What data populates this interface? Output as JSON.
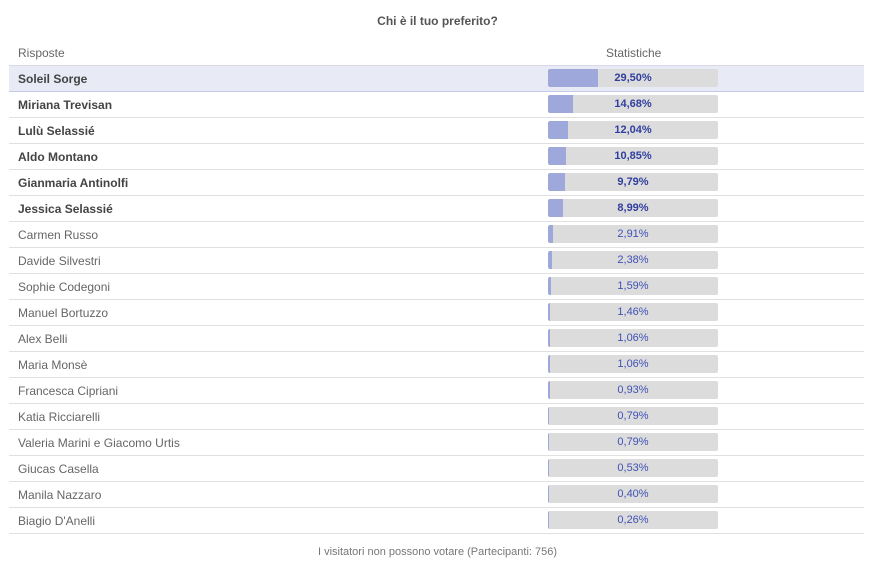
{
  "title": "Chi è il tuo preferito?",
  "header": {
    "answers_label": "Risposte",
    "stats_label": "Statistiche"
  },
  "colors": {
    "bar_fill": "#9fa8da",
    "bar_track": "#dcdcdc",
    "highlight_row": "#e8eaf6",
    "value_text": "#3f51b5"
  },
  "rows": [
    {
      "name": "Soleil Sorge",
      "percent_label": "29,50%",
      "percent": 29.5,
      "bold": true,
      "highlight": true
    },
    {
      "name": "Miriana Trevisan",
      "percent_label": "14,68%",
      "percent": 14.68,
      "bold": true,
      "highlight": false
    },
    {
      "name": "Lulù Selassié",
      "percent_label": "12,04%",
      "percent": 12.04,
      "bold": true,
      "highlight": false
    },
    {
      "name": "Aldo Montano",
      "percent_label": "10,85%",
      "percent": 10.85,
      "bold": true,
      "highlight": false
    },
    {
      "name": "Gianmaria Antinolfi",
      "percent_label": "9,79%",
      "percent": 9.79,
      "bold": true,
      "highlight": false
    },
    {
      "name": "Jessica Selassié",
      "percent_label": "8,99%",
      "percent": 8.99,
      "bold": true,
      "highlight": false
    },
    {
      "name": "Carmen Russo",
      "percent_label": "2,91%",
      "percent": 2.91,
      "bold": false,
      "highlight": false
    },
    {
      "name": "Davide Silvestri",
      "percent_label": "2,38%",
      "percent": 2.38,
      "bold": false,
      "highlight": false
    },
    {
      "name": "Sophie Codegoni",
      "percent_label": "1,59%",
      "percent": 1.59,
      "bold": false,
      "highlight": false
    },
    {
      "name": "Manuel Bortuzzo",
      "percent_label": "1,46%",
      "percent": 1.46,
      "bold": false,
      "highlight": false
    },
    {
      "name": "Alex Belli",
      "percent_label": "1,06%",
      "percent": 1.06,
      "bold": false,
      "highlight": false
    },
    {
      "name": "Maria Monsè",
      "percent_label": "1,06%",
      "percent": 1.06,
      "bold": false,
      "highlight": false
    },
    {
      "name": "Francesca Cipriani",
      "percent_label": "0,93%",
      "percent": 0.93,
      "bold": false,
      "highlight": false
    },
    {
      "name": "Katia Ricciarelli",
      "percent_label": "0,79%",
      "percent": 0.79,
      "bold": false,
      "highlight": false
    },
    {
      "name": "Valeria Marini e Giacomo Urtis",
      "percent_label": "0,79%",
      "percent": 0.79,
      "bold": false,
      "highlight": false
    },
    {
      "name": "Giucas Casella",
      "percent_label": "0,53%",
      "percent": 0.53,
      "bold": false,
      "highlight": false
    },
    {
      "name": "Manila Nazzaro",
      "percent_label": "0,40%",
      "percent": 0.4,
      "bold": false,
      "highlight": false
    },
    {
      "name": "Biagio D'Anelli",
      "percent_label": "0,26%",
      "percent": 0.26,
      "bold": false,
      "highlight": false
    }
  ],
  "footer": "I visitatori non possono votare (Partecipanti: 756)"
}
